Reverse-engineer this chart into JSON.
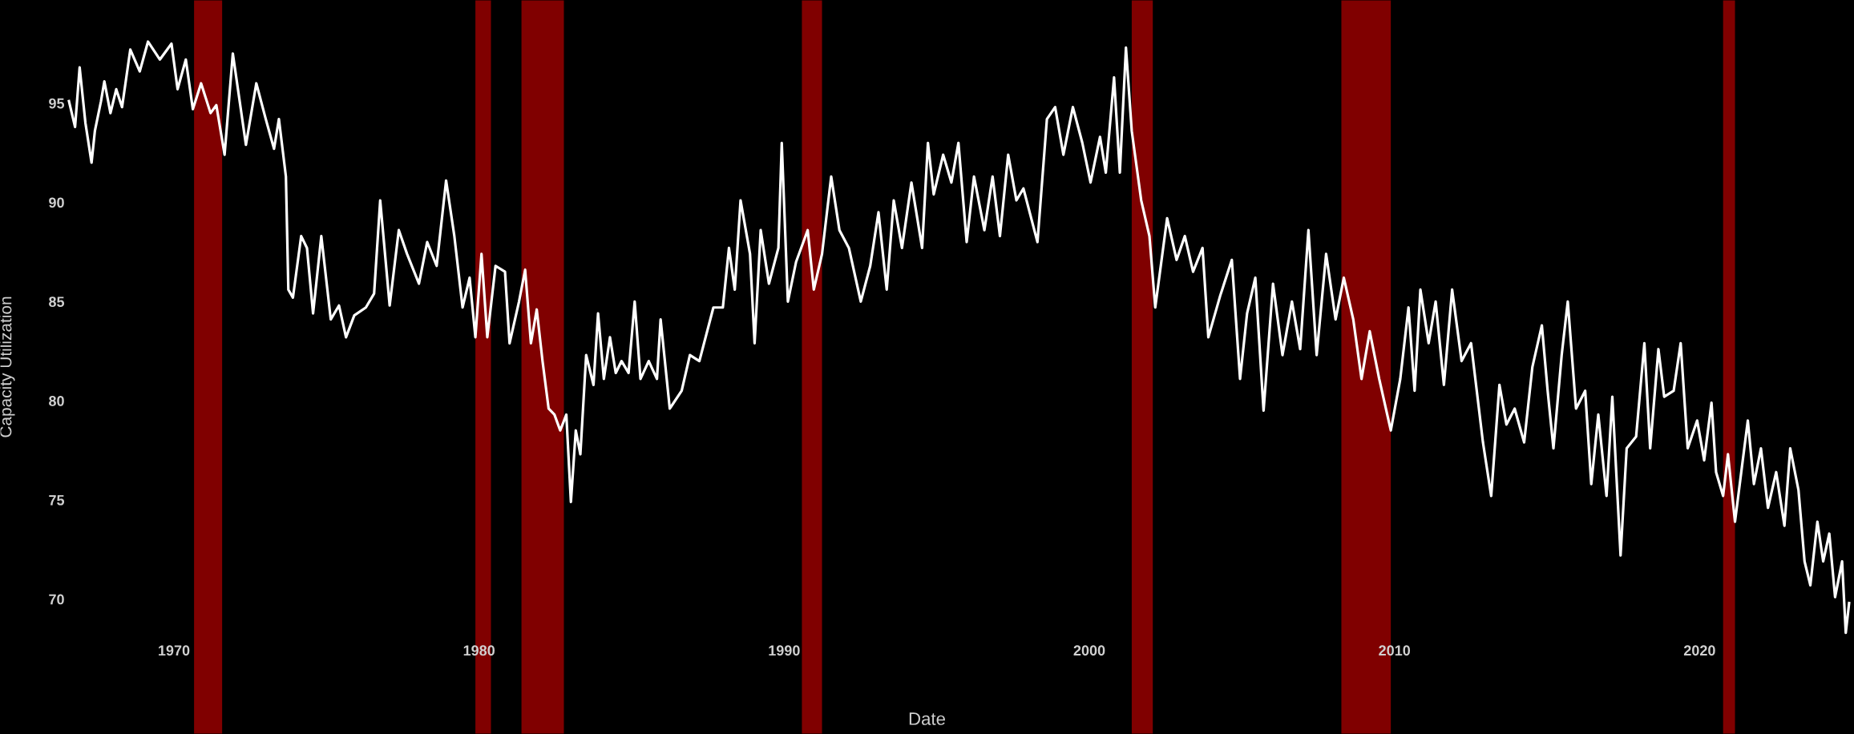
{
  "chart_data": {
    "type": "line",
    "xlabel": "Date",
    "ylabel": "Capacity Utilization",
    "xlim": [
      1964.3,
      2025.06
    ],
    "ylim": [
      63.2,
      100.2
    ],
    "xticks": [
      1970,
      1980,
      1990,
      2000,
      2010,
      2020
    ],
    "yticks": [
      70,
      75,
      80,
      85,
      90,
      95
    ],
    "grid": false,
    "legend": false,
    "marker": "none",
    "line_style": "solid",
    "bands": [
      {
        "axis": "x",
        "from": 1970.66,
        "to": 1971.58,
        "color": "#800000"
      },
      {
        "axis": "x",
        "from": 1979.88,
        "to": 1980.39,
        "color": "#800000"
      },
      {
        "axis": "x",
        "from": 1981.39,
        "to": 1982.78,
        "color": "#800000"
      },
      {
        "axis": "x",
        "from": 1990.58,
        "to": 1991.24,
        "color": "#800000"
      },
      {
        "axis": "x",
        "from": 2001.39,
        "to": 2002.08,
        "color": "#800000"
      },
      {
        "axis": "x",
        "from": 2008.26,
        "to": 2009.88,
        "color": "#800000"
      },
      {
        "axis": "x",
        "from": 2020.77,
        "to": 2021.16,
        "color": "#800000"
      }
    ],
    "series": [
      {
        "color": "#ffffff",
        "x": [
          1966.56,
          1966.76,
          1966.91,
          1967.1,
          1967.3,
          1967.41,
          1967.61,
          1967.72,
          1967.92,
          1968.11,
          1968.3,
          1968.57,
          1968.88,
          1969.15,
          1969.54,
          1969.92,
          1970.12,
          1970.39,
          1970.62,
          1970.89,
          1971.2,
          1971.39,
          1971.66,
          1971.93,
          1972.36,
          1972.7,
          1973.01,
          1973.28,
          1973.44,
          1973.67,
          1973.75,
          1973.9,
          1974.17,
          1974.36,
          1974.56,
          1974.83,
          1975.14,
          1975.41,
          1975.64,
          1975.91,
          1976.29,
          1976.56,
          1976.76,
          1977.07,
          1977.37,
          1977.64,
          1978.03,
          1978.3,
          1978.61,
          1978.92,
          1979.19,
          1979.46,
          1979.69,
          1979.88,
          1980.08,
          1980.27,
          1980.54,
          1980.85,
          1981.0,
          1981.31,
          1981.51,
          1981.7,
          1981.89,
          1982.08,
          1982.28,
          1982.47,
          1982.66,
          1982.86,
          1983.01,
          1983.17,
          1983.32,
          1983.51,
          1983.75,
          1983.9,
          1984.09,
          1984.29,
          1984.48,
          1984.67,
          1984.9,
          1985.1,
          1985.29,
          1985.56,
          1985.83,
          1985.95,
          1986.25,
          1986.64,
          1986.91,
          1987.22,
          1987.68,
          1987.99,
          1988.19,
          1988.38,
          1988.57,
          1988.88,
          1989.03,
          1989.23,
          1989.5,
          1989.81,
          1989.92,
          1990.12,
          1990.39,
          1990.77,
          1990.97,
          1991.24,
          1991.54,
          1991.81,
          1992.12,
          1992.51,
          1992.82,
          1993.09,
          1993.36,
          1993.59,
          1993.86,
          1994.17,
          1994.52,
          1994.71,
          1994.9,
          1995.21,
          1995.48,
          1995.71,
          1995.98,
          1996.22,
          1996.56,
          1996.83,
          1997.07,
          1997.34,
          1997.61,
          1997.84,
          1998.3,
          1998.61,
          1998.88,
          1999.15,
          1999.46,
          1999.77,
          2000.04,
          2000.35,
          2000.54,
          2000.81,
          2001.0,
          2001.2,
          2001.39,
          2001.7,
          2001.97,
          2002.16,
          2002.55,
          2002.86,
          2003.13,
          2003.4,
          2003.71,
          2003.9,
          2004.29,
          2004.67,
          2004.94,
          2005.17,
          2005.44,
          2005.71,
          2006.02,
          2006.33,
          2006.64,
          2006.91,
          2007.18,
          2007.45,
          2007.76,
          2008.07,
          2008.34,
          2008.65,
          2008.92,
          2009.19,
          2009.5,
          2009.88,
          2010.19,
          2010.46,
          2010.66,
          2010.85,
          2011.12,
          2011.35,
          2011.62,
          2011.89,
          2012.2,
          2012.51,
          2012.9,
          2013.17,
          2013.44,
          2013.67,
          2013.94,
          2014.25,
          2014.52,
          2014.83,
          2015.02,
          2015.21,
          2015.48,
          2015.68,
          2015.95,
          2016.25,
          2016.45,
          2016.68,
          2016.95,
          2017.14,
          2017.41,
          2017.61,
          2017.92,
          2018.19,
          2018.38,
          2018.65,
          2018.84,
          2019.15,
          2019.38,
          2019.61,
          2019.92,
          2020.15,
          2020.39,
          2020.54,
          2020.77,
          2020.93,
          2021.16,
          2021.39,
          2021.58,
          2021.78,
          2022.01,
          2022.24,
          2022.51,
          2022.78,
          2022.97,
          2023.24,
          2023.44,
          2023.63,
          2023.86,
          2024.05,
          2024.25,
          2024.44,
          2024.67,
          2024.79,
          2024.9
        ],
        "values": [
          95.1,
          93.8,
          96.8,
          94.0,
          92.0,
          93.6,
          95.1,
          96.1,
          94.5,
          95.7,
          94.8,
          97.7,
          96.6,
          98.1,
          97.2,
          98.0,
          95.7,
          97.2,
          94.7,
          96.0,
          94.5,
          94.9,
          92.4,
          97.5,
          92.9,
          96.0,
          94.2,
          92.7,
          94.2,
          91.3,
          85.6,
          85.2,
          88.3,
          87.7,
          84.4,
          88.3,
          84.1,
          84.8,
          83.2,
          84.3,
          84.7,
          85.4,
          90.1,
          84.8,
          88.6,
          87.4,
          85.9,
          88.0,
          86.8,
          91.1,
          88.3,
          84.7,
          86.2,
          83.2,
          87.4,
          83.2,
          86.8,
          86.5,
          82.9,
          85.0,
          86.6,
          82.9,
          84.6,
          82.0,
          79.6,
          79.3,
          78.5,
          79.3,
          74.9,
          78.5,
          77.3,
          82.3,
          80.8,
          84.4,
          81.1,
          83.2,
          81.4,
          82.0,
          81.4,
          85.0,
          81.1,
          82.0,
          81.1,
          84.1,
          79.6,
          80.5,
          82.3,
          82.0,
          84.7,
          84.7,
          87.7,
          85.6,
          90.1,
          87.4,
          82.9,
          88.6,
          85.9,
          87.7,
          93.0,
          85.0,
          87.0,
          88.6,
          85.6,
          87.4,
          91.3,
          88.6,
          87.7,
          85.0,
          86.8,
          89.5,
          85.6,
          90.1,
          87.7,
          91.0,
          87.7,
          93.0,
          90.4,
          92.4,
          91.0,
          93.0,
          88.0,
          91.3,
          88.6,
          91.3,
          88.3,
          92.4,
          90.1,
          90.7,
          88.0,
          94.2,
          94.8,
          92.4,
          94.8,
          93.0,
          91.0,
          93.3,
          91.5,
          96.3,
          91.5,
          97.8,
          93.6,
          90.1,
          88.3,
          84.7,
          89.2,
          87.1,
          88.3,
          86.5,
          87.7,
          83.2,
          85.3,
          87.1,
          81.1,
          84.4,
          86.2,
          79.5,
          85.9,
          82.3,
          85.0,
          82.6,
          88.6,
          82.3,
          87.4,
          84.1,
          86.2,
          84.1,
          81.1,
          83.5,
          81.1,
          78.5,
          81.1,
          84.7,
          80.5,
          85.6,
          82.9,
          85.0,
          80.8,
          85.6,
          82.0,
          82.9,
          77.9,
          75.2,
          80.8,
          78.8,
          79.6,
          77.9,
          81.7,
          83.8,
          80.5,
          77.6,
          82.3,
          85.0,
          79.6,
          80.5,
          75.8,
          79.3,
          75.2,
          80.2,
          72.2,
          77.6,
          78.2,
          82.9,
          77.6,
          82.6,
          80.2,
          80.5,
          82.9,
          77.6,
          79.0,
          77.0,
          79.9,
          76.4,
          75.2,
          77.3,
          73.9,
          76.7,
          79.0,
          75.8,
          77.6,
          74.6,
          76.4,
          73.7,
          77.6,
          75.5,
          71.9,
          70.7,
          73.9,
          71.9,
          73.3,
          70.1,
          71.9,
          68.3,
          69.8
        ]
      }
    ]
  }
}
